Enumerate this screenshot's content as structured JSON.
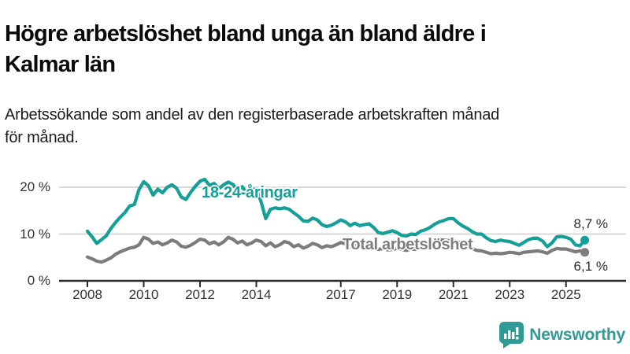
{
  "header": {
    "title": "Högre arbetslöshet bland unga än bland äldre i\nKalmar län",
    "subtitle": "Arbetssökande som andel av den registerbaserade arbetskraften månad\nför månad."
  },
  "branding": {
    "wordmark": "Newsworthy",
    "brand_color": "#2E9C94",
    "icon": "newsworthy-chart-bubble-icon"
  },
  "colors": {
    "youth_line": "#14A096",
    "total_line": "#7C7C7C",
    "gridline": "#D8D8D8",
    "axis": "#2B2B2B",
    "tick_text": "#333333"
  },
  "chart_data": {
    "type": "line",
    "title": "Högre arbetslöshet bland unga än bland äldre i Kalmar län",
    "subtitle": "Arbetssökande som andel av den registerbaserade arbetskraften månad för månad.",
    "unit": "%",
    "grid": "horizontal",
    "legend_position": "inline-labels",
    "xlim": [
      2007.9,
      2026.1
    ],
    "ylim": [
      0,
      23.5
    ],
    "yticks": [
      {
        "value": 0,
        "label": "0 %"
      },
      {
        "value": 10,
        "label": "10 %"
      },
      {
        "value": 20,
        "label": "20 %"
      }
    ],
    "xticks": [
      {
        "value": 2008,
        "label": "2008"
      },
      {
        "value": 2010,
        "label": "2010"
      },
      {
        "value": 2012,
        "label": "2012"
      },
      {
        "value": 2014,
        "label": "2014"
      },
      {
        "value": 2017,
        "label": "2017"
      },
      {
        "value": 2019,
        "label": "2019"
      },
      {
        "value": 2021,
        "label": "2021"
      },
      {
        "value": 2023,
        "label": "2023"
      },
      {
        "value": 2025,
        "label": "2025"
      }
    ],
    "x": [
      2008.0,
      2008.167,
      2008.333,
      2008.5,
      2008.667,
      2008.833,
      2009.0,
      2009.167,
      2009.333,
      2009.5,
      2009.667,
      2009.833,
      2010.0,
      2010.167,
      2010.333,
      2010.5,
      2010.667,
      2010.833,
      2011.0,
      2011.167,
      2011.333,
      2011.5,
      2011.667,
      2011.833,
      2012.0,
      2012.167,
      2012.333,
      2012.5,
      2012.667,
      2012.833,
      2013.0,
      2013.167,
      2013.333,
      2013.5,
      2013.667,
      2013.833,
      2014.0,
      2014.167,
      2014.333,
      2014.5,
      2014.667,
      2014.833,
      2015.0,
      2015.167,
      2015.333,
      2015.5,
      2015.667,
      2015.833,
      2016.0,
      2016.167,
      2016.333,
      2016.5,
      2016.667,
      2016.833,
      2017.0,
      2017.167,
      2017.333,
      2017.5,
      2017.667,
      2017.833,
      2018.0,
      2018.167,
      2018.333,
      2018.5,
      2018.667,
      2018.833,
      2019.0,
      2019.167,
      2019.333,
      2019.5,
      2019.667,
      2019.833,
      2020.0,
      2020.167,
      2020.333,
      2020.5,
      2020.667,
      2020.833,
      2021.0,
      2021.167,
      2021.333,
      2021.5,
      2021.667,
      2021.833,
      2022.0,
      2022.167,
      2022.333,
      2022.5,
      2022.667,
      2022.833,
      2023.0,
      2023.167,
      2023.333,
      2023.5,
      2023.667,
      2023.833,
      2024.0,
      2024.167,
      2024.333,
      2024.5,
      2024.667,
      2024.833,
      2025.0,
      2025.167,
      2025.333,
      2025.5,
      2025.667
    ],
    "series": [
      {
        "name": "18-24-åringar",
        "color": "#14A096",
        "end_label": "8,7 %",
        "end_value": 8.7,
        "values": [
          10.6,
          9.4,
          8.0,
          8.8,
          9.6,
          11.2,
          12.5,
          13.6,
          14.6,
          16.0,
          16.3,
          19.5,
          21.2,
          20.3,
          18.3,
          19.6,
          18.8,
          20.0,
          20.5,
          19.8,
          17.9,
          17.4,
          18.9,
          20.2,
          21.3,
          21.7,
          20.4,
          20.8,
          19.7,
          20.5,
          21.1,
          20.6,
          19.4,
          20.1,
          18.7,
          19.3,
          19.7,
          16.9,
          13.3,
          15.3,
          15.6,
          15.4,
          15.6,
          15.3,
          14.5,
          13.8,
          12.8,
          12.7,
          13.4,
          13.0,
          12.0,
          11.6,
          11.9,
          12.4,
          13.0,
          12.6,
          11.8,
          12.3,
          11.8,
          12.0,
          12.2,
          11.4,
          10.3,
          10.1,
          10.4,
          10.7,
          10.3,
          9.7,
          9.6,
          10.0,
          9.9,
          10.6,
          10.9,
          11.4,
          12.1,
          12.6,
          12.9,
          13.3,
          13.3,
          12.4,
          11.7,
          11.2,
          10.5,
          10.0,
          10.0,
          9.2,
          8.6,
          8.4,
          8.7,
          8.5,
          8.4,
          8.0,
          7.6,
          8.2,
          8.8,
          9.1,
          9.1,
          8.5,
          7.3,
          8.1,
          9.4,
          9.5,
          9.3,
          8.9,
          7.7,
          7.5,
          8.7
        ]
      },
      {
        "name": "Total arbetslöshet",
        "color": "#7C7C7C",
        "end_label": "6,1 %",
        "end_value": 6.1,
        "values": [
          5.1,
          4.7,
          4.2,
          4.0,
          4.4,
          4.9,
          5.7,
          6.2,
          6.6,
          7.0,
          7.2,
          7.7,
          9.3,
          8.9,
          8.0,
          8.3,
          7.7,
          8.1,
          8.7,
          8.3,
          7.4,
          7.2,
          7.6,
          8.2,
          8.9,
          8.7,
          7.9,
          8.3,
          7.7,
          8.3,
          9.3,
          8.9,
          8.1,
          8.5,
          7.7,
          8.1,
          8.7,
          8.4,
          7.5,
          8.1,
          7.3,
          7.7,
          8.4,
          8.1,
          7.3,
          7.7,
          7.0,
          7.4,
          8.0,
          7.7,
          7.1,
          7.5,
          7.3,
          7.7,
          8.2,
          7.9,
          7.3,
          7.6,
          7.2,
          7.3,
          7.5,
          7.2,
          6.7,
          6.9,
          6.6,
          6.7,
          6.9,
          6.7,
          6.5,
          6.8,
          6.7,
          7.0,
          7.2,
          7.6,
          8.4,
          8.8,
          8.7,
          8.6,
          8.7,
          8.3,
          7.7,
          7.4,
          6.9,
          6.5,
          6.4,
          6.1,
          5.8,
          5.9,
          5.8,
          5.9,
          6.1,
          6.0,
          5.8,
          6.1,
          6.2,
          6.3,
          6.4,
          6.2,
          5.9,
          6.5,
          6.9,
          6.8,
          6.8,
          6.5,
          6.2,
          6.4,
          6.1
        ]
      }
    ]
  }
}
